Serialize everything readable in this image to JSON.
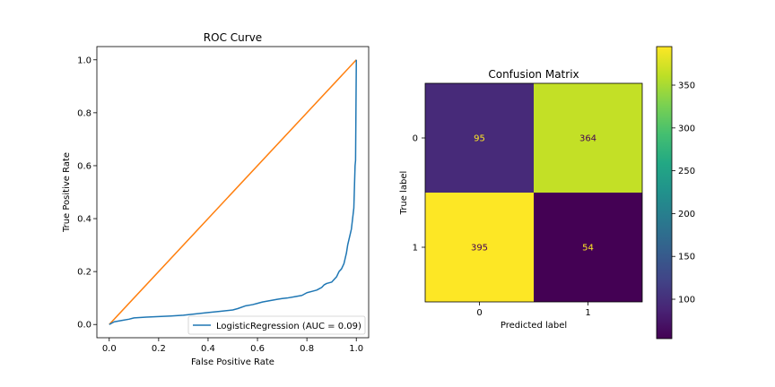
{
  "chart_data": [
    {
      "type": "line",
      "title": "ROC Curve",
      "xlabel": "False Positive Rate",
      "ylabel": "True Positive Rate",
      "xlim": [
        -0.05,
        1.05
      ],
      "ylim": [
        -0.05,
        1.05
      ],
      "xticks": [
        "0.0",
        "0.2",
        "0.4",
        "0.6",
        "0.8",
        "1.0"
      ],
      "yticks": [
        "0.0",
        "0.2",
        "0.4",
        "0.6",
        "0.8",
        "1.0"
      ],
      "grid": false,
      "legend_position": "lower-right",
      "series": [
        {
          "name": "LogisticRegression (AUC = 0.09)",
          "color": "#1f77b4",
          "x": [
            0.0,
            0.02,
            0.05,
            0.08,
            0.1,
            0.15,
            0.2,
            0.25,
            0.3,
            0.35,
            0.4,
            0.45,
            0.5,
            0.52,
            0.55,
            0.58,
            0.6,
            0.62,
            0.65,
            0.68,
            0.7,
            0.72,
            0.75,
            0.78,
            0.8,
            0.82,
            0.84,
            0.85,
            0.86,
            0.87,
            0.88,
            0.9,
            0.91,
            0.92,
            0.93,
            0.94,
            0.95,
            0.955,
            0.96,
            0.965,
            0.97,
            0.975,
            0.98,
            0.985,
            0.99,
            0.995,
            0.997,
            1.0,
            1.0
          ],
          "y": [
            0.0,
            0.01,
            0.015,
            0.02,
            0.025,
            0.028,
            0.03,
            0.032,
            0.035,
            0.04,
            0.045,
            0.05,
            0.055,
            0.06,
            0.07,
            0.075,
            0.08,
            0.085,
            0.09,
            0.095,
            0.098,
            0.1,
            0.105,
            0.11,
            0.12,
            0.125,
            0.13,
            0.135,
            0.14,
            0.15,
            0.155,
            0.16,
            0.17,
            0.18,
            0.2,
            0.21,
            0.23,
            0.25,
            0.27,
            0.3,
            0.32,
            0.34,
            0.36,
            0.4,
            0.44,
            0.6,
            0.62,
            0.99,
            1.0
          ]
        },
        {
          "name": "",
          "color": "#ff7f0e",
          "x": [
            0.0,
            1.0
          ],
          "y": [
            0.0,
            1.0
          ]
        }
      ]
    },
    {
      "type": "heatmap",
      "title": "Confusion Matrix",
      "xlabel": "Predicted label",
      "ylabel": "True label",
      "row_labels": [
        "0",
        "1"
      ],
      "col_labels": [
        "0",
        "1"
      ],
      "values": [
        [
          95,
          364
        ],
        [
          395,
          54
        ]
      ],
      "colorbar": {
        "min": 54,
        "max": 395,
        "ticks": [
          100,
          150,
          200,
          250,
          300,
          350
        ],
        "colormap": "viridis"
      }
    }
  ]
}
